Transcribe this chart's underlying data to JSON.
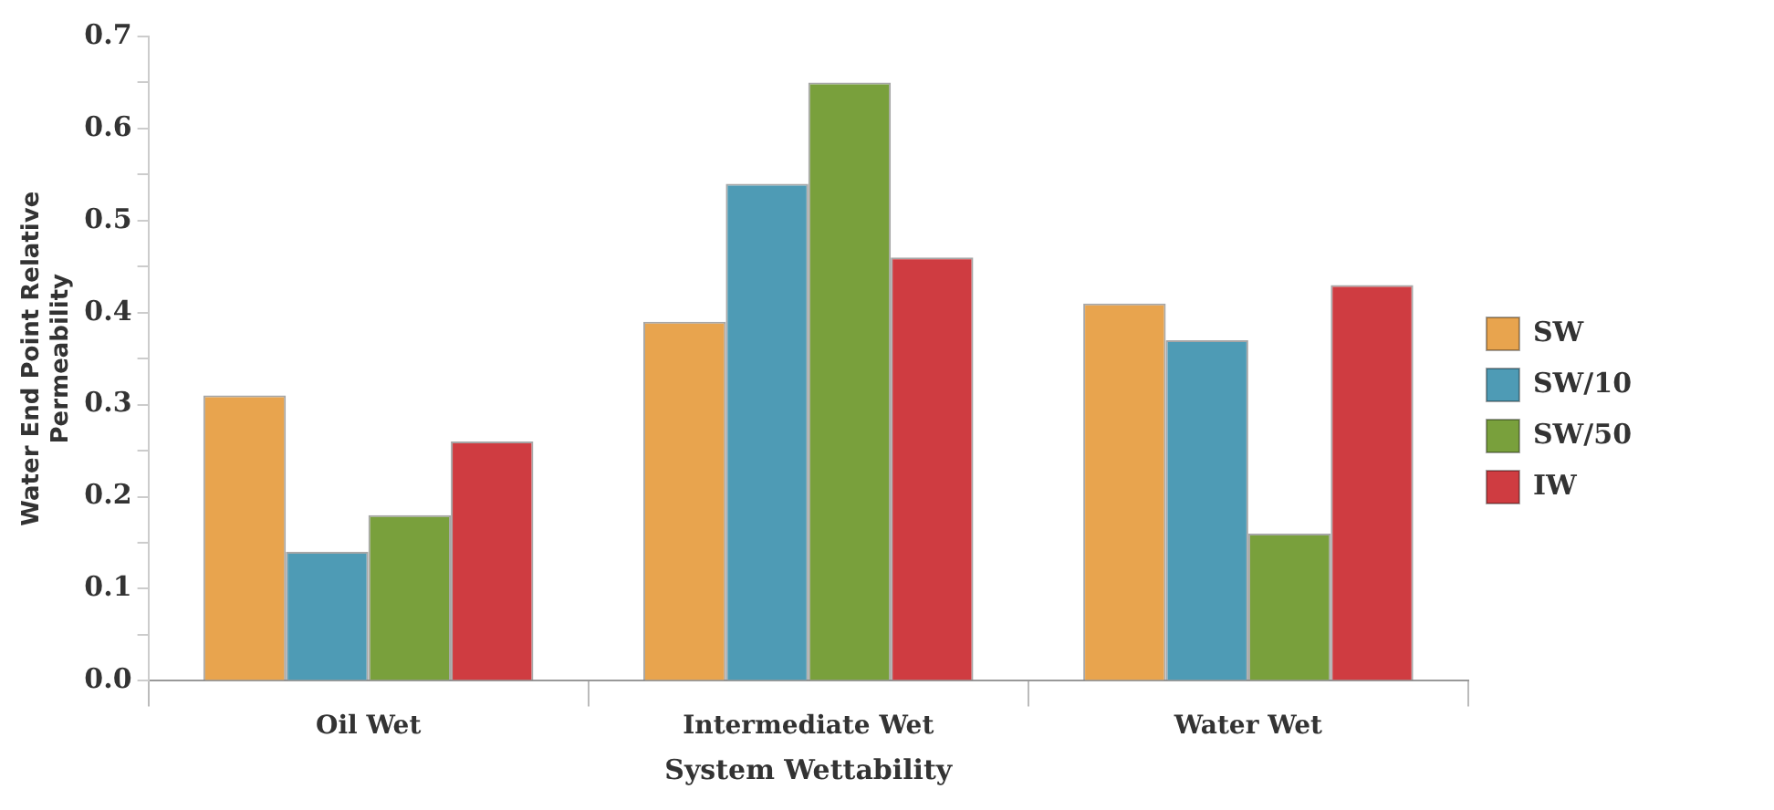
{
  "chart_data": {
    "type": "bar",
    "xlabel": "System Wettability",
    "ylabel": "Water End Point Relative\nPermeability",
    "categories": [
      "Oil Wet",
      "Intermediate Wet",
      "Water Wet"
    ],
    "series": [
      {
        "name": "SW",
        "color": "#e8a44e",
        "values": [
          0.31,
          0.39,
          0.41
        ]
      },
      {
        "name": "SW/10",
        "color": "#4e9bb5",
        "values": [
          0.14,
          0.54,
          0.37
        ]
      },
      {
        "name": "SW/50",
        "color": "#79a03c",
        "values": [
          0.18,
          0.65,
          0.16
        ]
      },
      {
        "name": "IW",
        "color": "#cf3c41",
        "values": [
          0.26,
          0.46,
          0.43
        ]
      }
    ],
    "ylim": [
      0,
      0.7
    ],
    "yticks": [
      {
        "value": 0,
        "label": "0.0"
      },
      {
        "value": 0.05,
        "label": null
      },
      0.1,
      {
        "value": 0.15,
        "label": null
      },
      0.2,
      {
        "value": 0.25,
        "label": null
      },
      0.3,
      {
        "value": 0.35,
        "label": null
      },
      0.4,
      {
        "value": 0.45,
        "label": null
      },
      0.5,
      {
        "value": 0.55,
        "label": null
      },
      0.6,
      {
        "value": 0.65,
        "label": null
      },
      0.7
    ],
    "grid": false,
    "legend": "right"
  }
}
